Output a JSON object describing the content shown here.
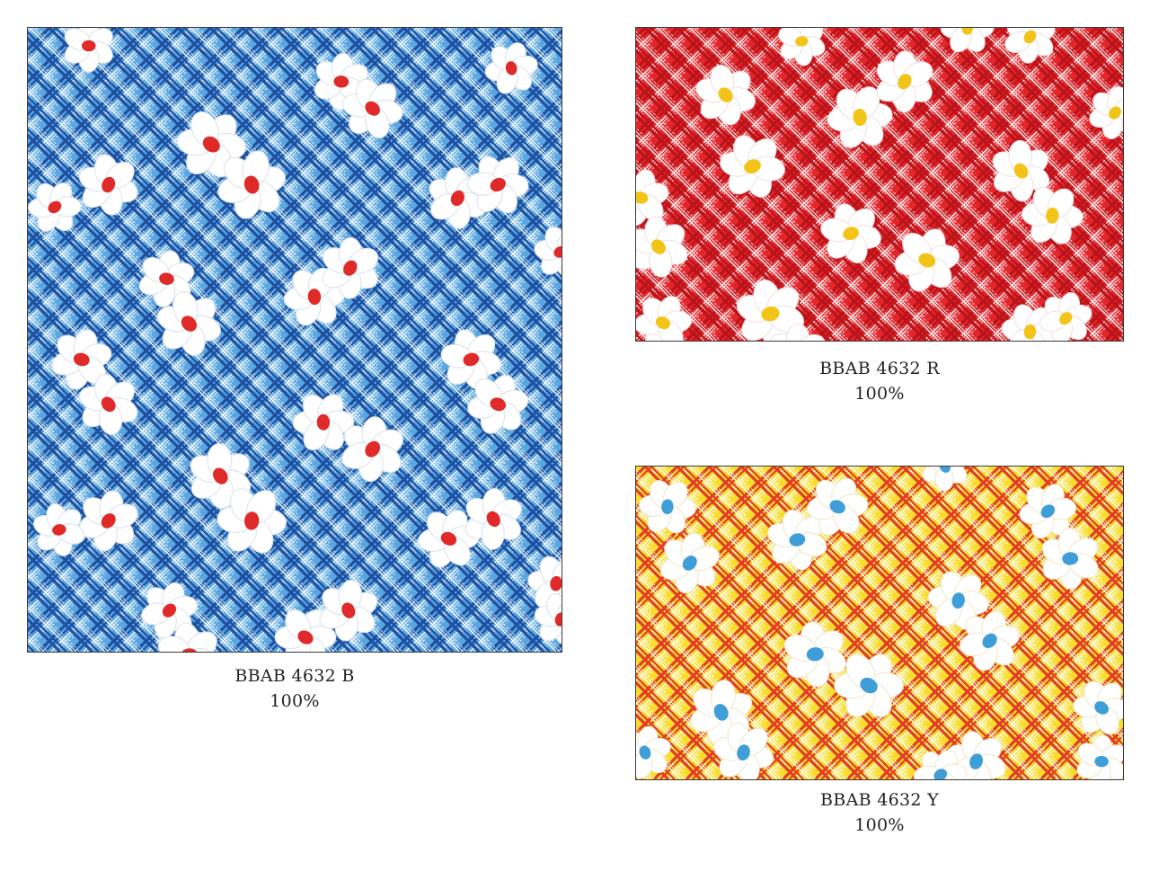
{
  "swatches": [
    {
      "id": "blue",
      "code": "BBAB 4632 B",
      "scale": "100%",
      "colors": {
        "ground": "#5aa6e0",
        "grid_dark": "#1f4fa0",
        "grid_light": "#ffffff",
        "petal": "#ffffff",
        "petal_shadow": "#dfe6ea",
        "center": "#e02a2a"
      }
    },
    {
      "id": "red",
      "code": "BBAB 4632 R",
      "scale": "100%",
      "colors": {
        "ground": "#e3262c",
        "grid_dark": "#b8141a",
        "grid_light": "#ffffff",
        "petal": "#ffffff",
        "petal_shadow": "#f1e4e4",
        "center": "#f2c418"
      }
    },
    {
      "id": "yellow",
      "code": "BBAB 4632 Y",
      "scale": "100%",
      "colors": {
        "ground": "#f7dc2a",
        "grid_dark": "#e23b2a",
        "grid_light": "#ffffff",
        "petal": "#ffffff",
        "petal_shadow": "#f0ead0",
        "center": "#3f9ed8"
      }
    }
  ]
}
